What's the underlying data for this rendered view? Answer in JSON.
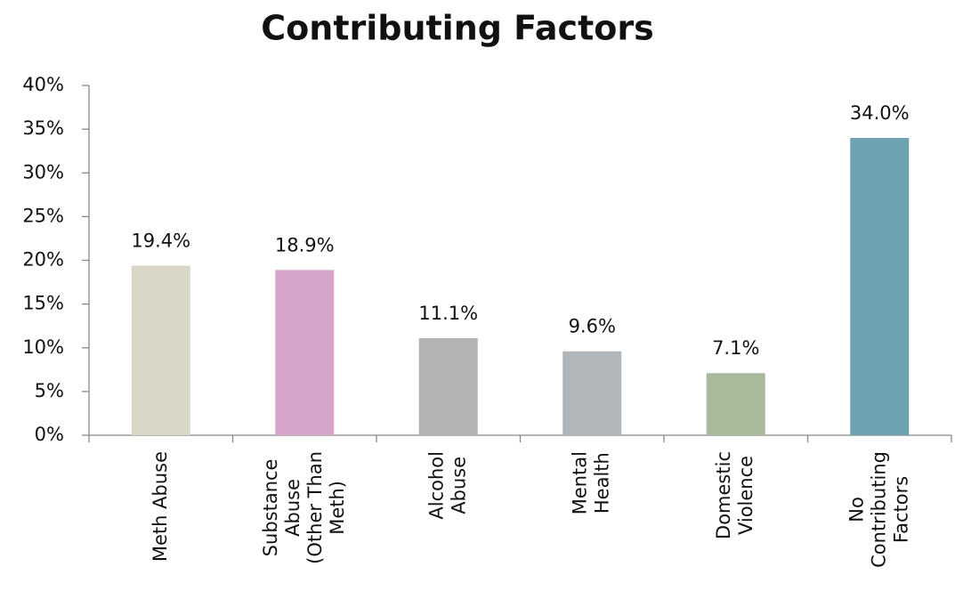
{
  "chart_data": {
    "type": "bar",
    "title": "Contributing Factors",
    "categories": [
      [
        "Meth Abuse"
      ],
      [
        "Substance",
        "Abuse",
        "(Other Than",
        "Meth)"
      ],
      [
        "Alcohol",
        "Abuse"
      ],
      [
        "Mental",
        "Health"
      ],
      [
        "Domestic",
        "Violence"
      ],
      [
        "No",
        "Contributing",
        "Factors"
      ]
    ],
    "values": [
      19.4,
      18.9,
      11.1,
      9.6,
      7.1,
      34.0
    ],
    "value_labels": [
      "19.4%",
      "18.9%",
      "11.1%",
      "9.6%",
      "7.1%",
      "34.0%"
    ],
    "colors": [
      "#d9d6c8",
      "#d5a6c9",
      "#b3b3b3",
      "#b1b6bb",
      "#a9b99b",
      "#6fa2b0"
    ],
    "ylim": [
      0,
      40
    ],
    "yticks": [
      {
        "value": 0,
        "label": "0%"
      },
      {
        "value": 5,
        "label": "5%"
      },
      {
        "value": 10,
        "label": "10%"
      },
      {
        "value": 15,
        "label": "15%"
      },
      {
        "value": 20,
        "label": "20%"
      },
      {
        "value": 25,
        "label": "25%"
      },
      {
        "value": 30,
        "label": "30%"
      },
      {
        "value": 35,
        "label": "35%"
      },
      {
        "value": 40,
        "label": "40%"
      }
    ],
    "grid": false
  }
}
